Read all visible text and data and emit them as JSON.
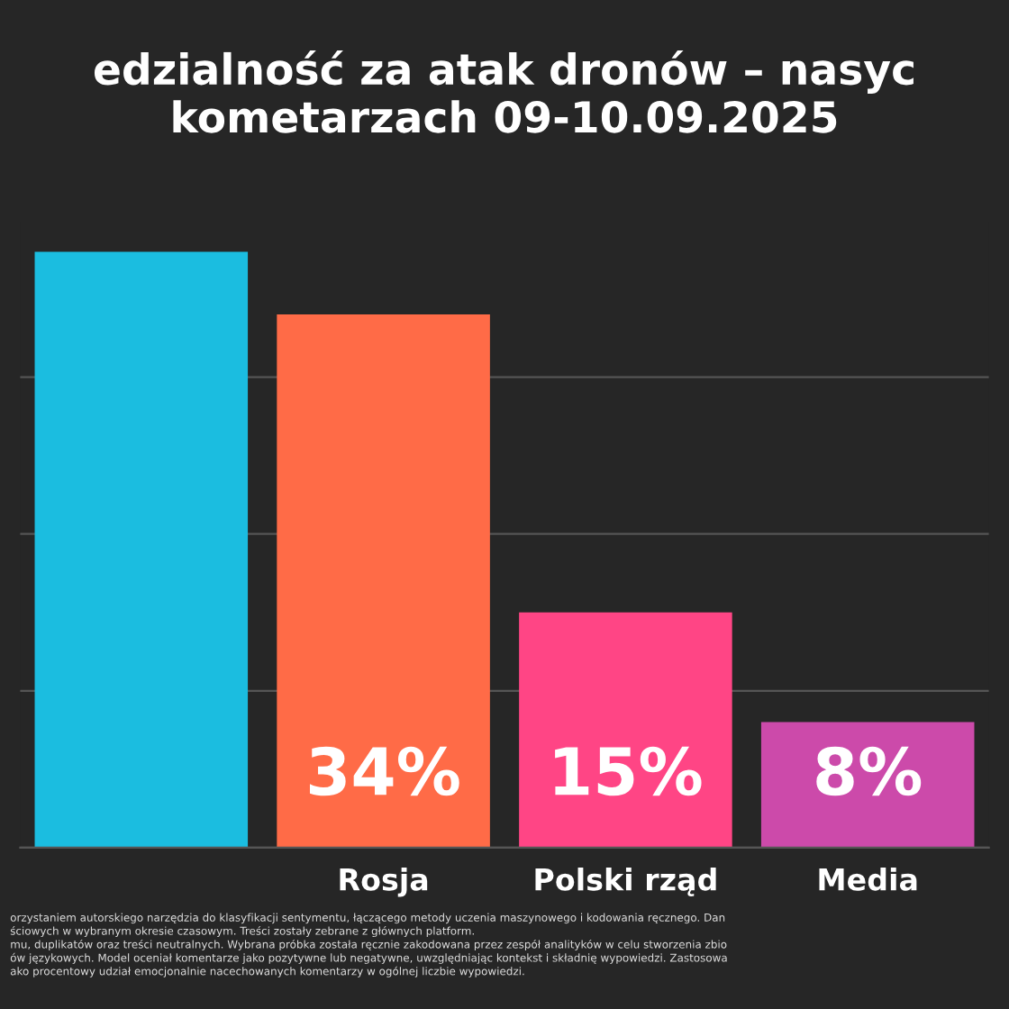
{
  "chart_data": {
    "type": "bar",
    "title": "edzialność za atak dronów – nasyc\nkometarzach 09-10.09.2025",
    "categories": [
      null,
      "Rosja",
      "Polski rząd",
      "Media"
    ],
    "values": [
      38,
      34,
      15,
      8
    ],
    "value_labels": [
      null,
      "34%",
      "15%",
      "8%"
    ],
    "colors": [
      "#1bbde0",
      "#ff6b47",
      "#ff4585",
      "#cc4aaa"
    ],
    "yticks": [
      0,
      10,
      20,
      30
    ],
    "grid": "y",
    "tick_labels": "x",
    "annotations": [
      "orzystaniem autorskiego narzędzia do klasyfikacji sentymentu, łączącego metody uczenia maszynowego i kodowania ręcznego. Dan\nściowych w wybranym okresie czasowym. Treści zostały zebrane z głównych platform.\nmu, duplikatów oraz treści neutralnych. Wybrana próbka została ręcznie zakodowana przez zespół analityków w celu stworzenia zbio\nów językowych. Model oceniał komentarze jako pozytywne lub negatywne, uwzględniając kontekst i składnię wypowiedzi. Zastosowa\nako procentowy udział emocjonalnie nacechowanych komentarzy w ogólnej liczbie wypowiedzi."
    ]
  }
}
